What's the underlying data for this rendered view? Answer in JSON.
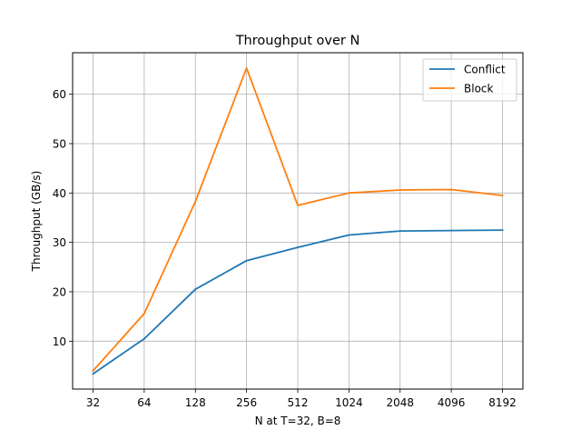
{
  "chart_data": {
    "type": "line",
    "title": "Throughput over N",
    "xlabel": "N at T=32, B=8",
    "ylabel": "Throughput (GB/s)",
    "x": [
      "32",
      "64",
      "128",
      "256",
      "512",
      "1024",
      "2048",
      "4096",
      "8192"
    ],
    "series": [
      {
        "name": "Conflict",
        "color": "#1f77b4",
        "values": [
          3.4,
          10.5,
          20.5,
          26.3,
          29.0,
          31.5,
          32.3,
          32.4,
          32.5
        ]
      },
      {
        "name": "Block",
        "color": "#ff7f0e",
        "values": [
          4.0,
          15.6,
          38.3,
          65.3,
          37.5,
          40.0,
          40.6,
          40.7,
          39.5
        ]
      }
    ],
    "yticks": [
      10,
      20,
      30,
      40,
      50,
      60
    ],
    "ylim": [
      0.3,
      68.4
    ],
    "grid": true,
    "legend_position": "top-right"
  }
}
